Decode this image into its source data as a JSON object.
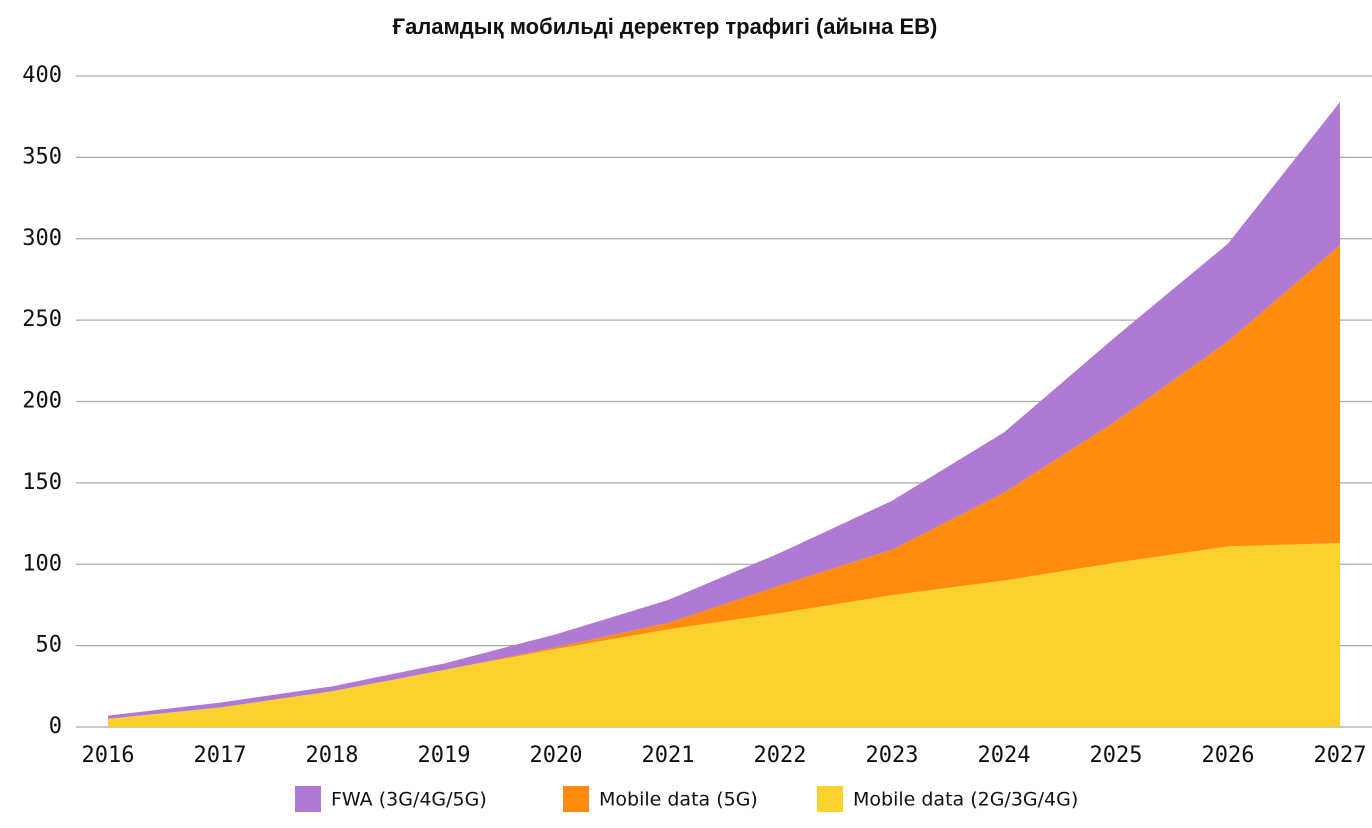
{
  "chart_data": {
    "type": "stacked_area",
    "title": "Ғаламдық мобильді деректер трафигі (айына ЕВ)",
    "categories": [
      "2016",
      "2017",
      "2018",
      "2019",
      "2020",
      "2021",
      "2022",
      "2023",
      "2024",
      "2025",
      "2026",
      "2027"
    ],
    "series": [
      {
        "name": "FWA (3G/4G/5G)",
        "color": "#b07ad4",
        "values": [
          2,
          3,
          3,
          4,
          8,
          14,
          20,
          30,
          37,
          52,
          60,
          88
        ]
      },
      {
        "name": "Mobile data (5G)",
        "color": "#ff8c0f",
        "values": [
          0,
          0,
          0,
          0,
          1,
          4,
          17,
          28,
          54,
          87,
          126,
          183
        ]
      },
      {
        "name": "Mobile data (2G/3G/4G)",
        "color": "#f9d22e",
        "values": [
          5,
          12,
          22,
          35,
          48,
          60,
          70,
          81,
          90,
          101,
          111,
          113
        ]
      }
    ],
    "ylim": [
      0,
      400
    ],
    "yticks": [
      0,
      50,
      100,
      150,
      200,
      250,
      300,
      350,
      400
    ],
    "grid": true,
    "legend": "bottom"
  }
}
